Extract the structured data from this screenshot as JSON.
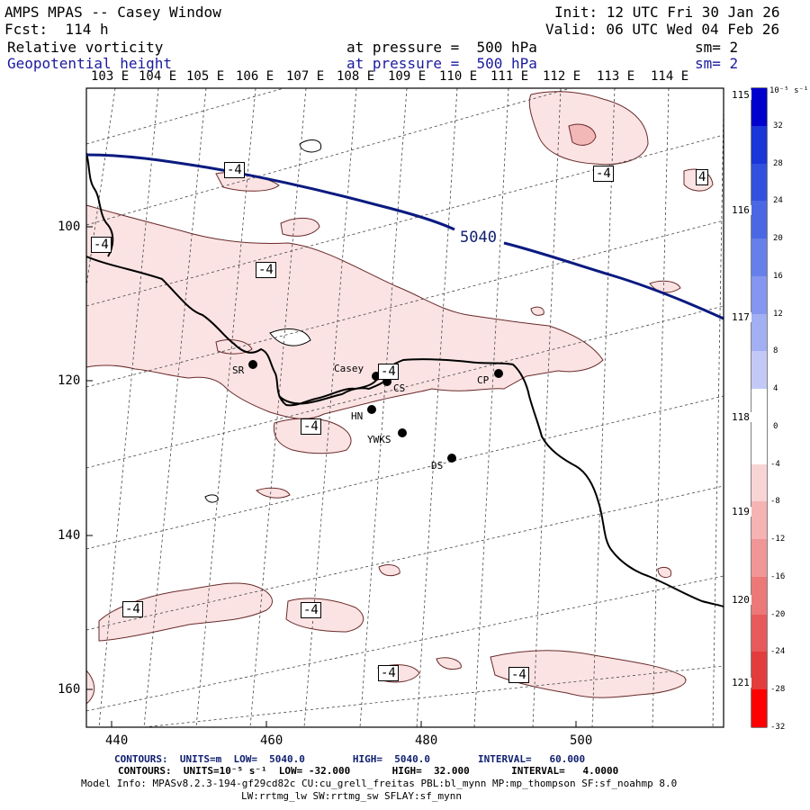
{
  "header": {
    "title": "AMPS MPAS -- Casey Window",
    "fcst": "Fcst:  114 h",
    "init": "Init: 12 UTC Fri 30 Jan 26",
    "valid": "Valid: 06 UTC Wed 04 Feb 26",
    "field1": {
      "name": "Relative vorticity",
      "pressure": "at pressure =  500 hPa",
      "sm": "sm= 2"
    },
    "field2": {
      "name": "Geopotential height",
      "pressure": "at pressure =  500 hPa",
      "sm": "sm= 2"
    }
  },
  "axes": {
    "top_lon_labels": [
      "103 E",
      "104 E",
      "105 E",
      "106 E",
      "107 E",
      "108 E",
      "109 E",
      "110 E",
      "111 E",
      "112 E",
      "113 E",
      "114 E"
    ],
    "right_lon_labels": [
      "115 E",
      "116 E",
      "117 E",
      "118 E",
      "119 E",
      "120 E",
      "121 E"
    ],
    "left_labels": [
      "100",
      "120",
      "140",
      "160"
    ],
    "bottom_labels": [
      "440",
      "460",
      "480",
      "500"
    ]
  },
  "colorbar": {
    "unit_label": "10⁻⁵ s⁻¹",
    "tick_labels": [
      "32",
      "28",
      "24",
      "20",
      "16",
      "12",
      "8",
      "4",
      "0",
      "-4",
      "-8",
      "-12",
      "-16",
      "-20",
      "-24",
      "-28",
      "-32"
    ],
    "colors": [
      "#0000cc",
      "#1a35d8",
      "#3150de",
      "#4a68e4",
      "#6680ea",
      "#8496ef",
      "#a3aff3",
      "#c3c9f7",
      "#ffffff",
      "#ffffff",
      "#f9d4d4",
      "#f5b3b3",
      "#f09696",
      "#ec7878",
      "#e85a5a",
      "#e33c3c",
      "#ff0000"
    ]
  },
  "map": {
    "height_contour_label": "5040",
    "vorticity_labels": [
      "-4",
      "-4",
      "4",
      "-4",
      "-4",
      "-4",
      "-4",
      "-4",
      "-4",
      "-4"
    ],
    "stations": [
      {
        "name": "Casey"
      },
      {
        "name": "CS"
      },
      {
        "name": "CP"
      },
      {
        "name": "SR"
      },
      {
        "name": "HN"
      },
      {
        "name": "YWKS"
      },
      {
        "name": "DS"
      }
    ]
  },
  "footer": {
    "contour1": "CONTOURS:  UNITS=m  LOW=  5040.0        HIGH=  5040.0        INTERVAL=   60.000",
    "contour2": "CONTOURS:  UNITS=10⁻⁵ s⁻¹  LOW= -32.000       HIGH=  32.000       INTERVAL=   4.0000",
    "model_info": "Model Info: MPASv8.2.3-194-gf29cd82c CU:cu_grell_freitas PBL:bl_mynn MP:mp_thompson SF:sf_noahmp 8.0",
    "model_info2": "LW:rrtmg_lw SW:rrtmg_sw SFLAY:sf_mynn"
  },
  "colors": {
    "height_contour": "#0a1a80",
    "vort_fill": "#fbe3e3",
    "vort_strong": "#f2b7b7"
  }
}
